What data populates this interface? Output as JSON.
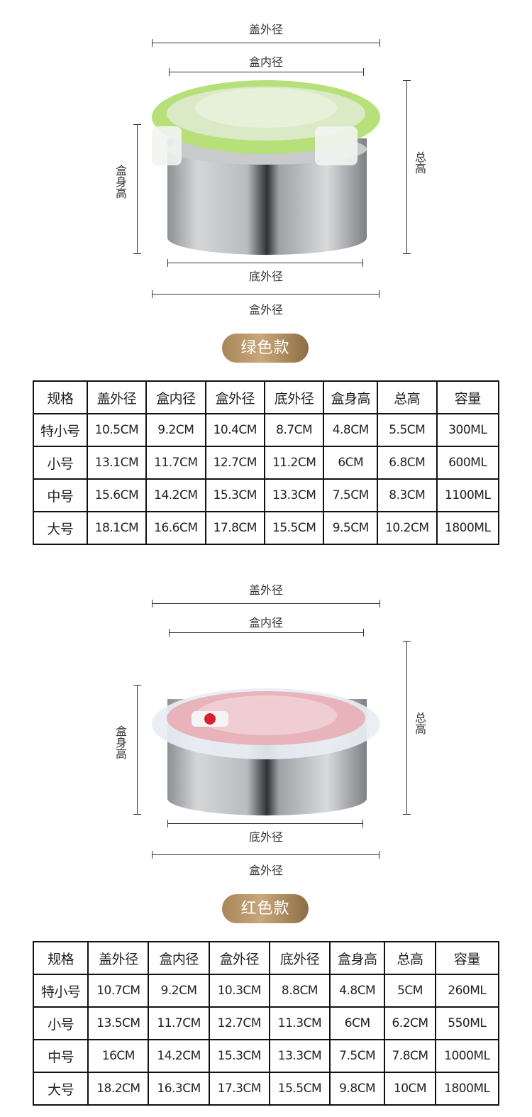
{
  "sections": [
    {
      "labels": {
        "lid_outer": "盖外径",
        "box_inner": "盒内径",
        "total_height": "总高",
        "body_height": "盒身高",
        "bottom_outer": "底外径",
        "box_outer": "盒外径"
      },
      "badge": "绿色款",
      "lid_color": "#b8e07a",
      "table": {
        "headers": [
          "规格",
          "盖外径",
          "盒内径",
          "盒外径",
          "底外径",
          "盒身高",
          "总高",
          "容量"
        ],
        "rows": [
          [
            "特小号",
            "10.5CM",
            "9.2CM",
            "10.4CM",
            "8.7CM",
            "4.8CM",
            "5.5CM",
            "300ML"
          ],
          [
            "小号",
            "13.1CM",
            "11.7CM",
            "12.7CM",
            "11.2CM",
            "6CM",
            "6.8CM",
            "600ML"
          ],
          [
            "中号",
            "15.6CM",
            "14.2CM",
            "15.3CM",
            "13.3CM",
            "7.5CM",
            "8.3CM",
            "1100ML"
          ],
          [
            "大号",
            "18.1CM",
            "16.6CM",
            "17.8CM",
            "15.5CM",
            "9.5CM",
            "10.2CM",
            "1800ML"
          ]
        ]
      }
    },
    {
      "labels": {
        "lid_outer": "盖外径",
        "box_inner": "盒内径",
        "total_height": "总高",
        "body_height": "盒身高",
        "bottom_outer": "底外径",
        "box_outer": "盒外径"
      },
      "badge": "红色款",
      "lid_color": "#e8eef4",
      "table": {
        "headers": [
          "规格",
          "盖外径",
          "盒内径",
          "盒外径",
          "底外径",
          "盒身高",
          "总高",
          "容量"
        ],
        "rows": [
          [
            "特小号",
            "10.7CM",
            "9.2CM",
            "10.3CM",
            "8.8CM",
            "4.8CM",
            "5CM",
            "260ML"
          ],
          [
            "小号",
            "13.5CM",
            "11.7CM",
            "12.7CM",
            "11.3CM",
            "6CM",
            "6.2CM",
            "550ML"
          ],
          [
            "中号",
            "16CM",
            "14.2CM",
            "15.3CM",
            "13.3CM",
            "7.5CM",
            "7.8CM",
            "1000ML"
          ],
          [
            "大号",
            "18.2CM",
            "16.3CM",
            "17.3CM",
            "15.5CM",
            "9.8CM",
            "10CM",
            "1800ML"
          ]
        ]
      }
    }
  ]
}
